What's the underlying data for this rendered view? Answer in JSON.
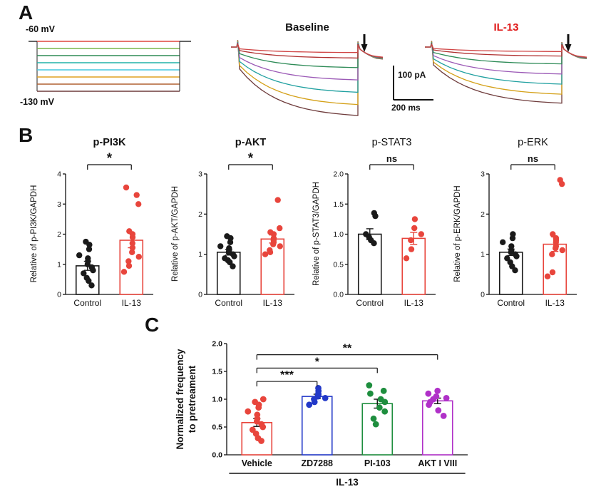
{
  "panel_a": {
    "label": "A",
    "protocol": {
      "top_label": "-60 mV",
      "bottom_label": "-130 mV",
      "step_colors": [
        "#e0453c",
        "#7ab648",
        "#2e8b57",
        "#20b2aa",
        "#45c8e0",
        "#e0a020",
        "#b06030",
        "#6e3b3b"
      ]
    },
    "baseline_title": "Baseline",
    "il13_title": "IL-13",
    "il13_title_style": "color:#e01818",
    "scalebar": {
      "vertical_label": "100 pA",
      "horizontal_label": "200 ms"
    },
    "traces": {
      "colors": [
        "#d04545",
        "#b03030",
        "#2e8b57",
        "#9b59b6",
        "#20a0a0",
        "#d4a017",
        "#6e3b3b"
      ],
      "relative_amplitudes": [
        0.08,
        0.16,
        0.3,
        0.48,
        0.66,
        0.84,
        1.0
      ],
      "il13_relative_scale": 0.82
    }
  },
  "panel_b": {
    "label": "B"
  },
  "panel_c": {
    "label": "C"
  },
  "chart_data": [
    {
      "id": "p_pi3k",
      "type": "bar",
      "title": "p-PI3K",
      "ylabel": "Relative of p-PI3K/GAPDH",
      "ylim": [
        0,
        4
      ],
      "yticks": [
        0,
        1,
        2,
        3,
        4
      ],
      "categories": [
        "Control",
        "IL-13"
      ],
      "significance": "*",
      "series": [
        {
          "name": "Control",
          "color": "#1a1a1a",
          "mean": 0.95,
          "sem": 0.15,
          "points": [
            0.3,
            0.45,
            0.55,
            0.7,
            0.8,
            0.9,
            1.0,
            1.1,
            1.2,
            1.3,
            1.5,
            1.65,
            1.75
          ]
        },
        {
          "name": "IL-13",
          "color": "#e8453c",
          "mean": 1.8,
          "sem": 0.25,
          "points": [
            0.75,
            0.95,
            1.1,
            1.25,
            1.4,
            1.55,
            1.7,
            1.9,
            2.0,
            2.1,
            3.0,
            3.3,
            3.55
          ]
        }
      ]
    },
    {
      "id": "p_akt",
      "type": "bar",
      "title": "p-AKT",
      "ylabel": "Relative of p-AKT/GAPDH",
      "ylim": [
        0,
        3
      ],
      "yticks": [
        0,
        1,
        2,
        3
      ],
      "categories": [
        "Control",
        "IL-13"
      ],
      "significance": "*",
      "series": [
        {
          "name": "Control",
          "color": "#1a1a1a",
          "mean": 1.05,
          "sem": 0.07,
          "points": [
            0.7,
            0.8,
            0.85,
            0.9,
            0.95,
            1.0,
            1.05,
            1.1,
            1.15,
            1.2,
            1.3,
            1.4,
            1.45
          ]
        },
        {
          "name": "IL-13",
          "color": "#e8453c",
          "mean": 1.38,
          "sem": 0.1,
          "points": [
            1.0,
            1.05,
            1.1,
            1.2,
            1.25,
            1.3,
            1.35,
            1.4,
            1.5,
            1.55,
            1.65,
            2.35
          ]
        }
      ]
    },
    {
      "id": "p_stat3",
      "type": "bar",
      "title": "p-STAT3",
      "ylabel": "Relative of p-STAT3/GAPDH",
      "ylim": [
        0,
        2
      ],
      "yticks": [
        0,
        0.5,
        1,
        1.5,
        2
      ],
      "categories": [
        "Control",
        "IL-13"
      ],
      "significance": "ns",
      "series": [
        {
          "name": "Control",
          "color": "#1a1a1a",
          "mean": 1.0,
          "sem": 0.09,
          "points": [
            0.85,
            0.9,
            0.95,
            1.0,
            1.3,
            1.35
          ]
        },
        {
          "name": "IL-13",
          "color": "#e8453c",
          "mean": 0.93,
          "sem": 0.1,
          "points": [
            0.6,
            0.75,
            0.9,
            1.0,
            1.1,
            1.25
          ]
        }
      ]
    },
    {
      "id": "p_erk",
      "type": "bar",
      "title": "p-ERK",
      "ylabel": "Relative of p-ERK/GAPDH",
      "ylim": [
        0,
        3
      ],
      "yticks": [
        0,
        1,
        2,
        3
      ],
      "categories": [
        "Control",
        "IL-13"
      ],
      "significance": "ns",
      "series": [
        {
          "name": "Control",
          "color": "#1a1a1a",
          "mean": 1.05,
          "sem": 0.08,
          "points": [
            0.6,
            0.7,
            0.8,
            0.9,
            0.95,
            1.0,
            1.05,
            1.1,
            1.2,
            1.3,
            1.4,
            1.5
          ]
        },
        {
          "name": "IL-13",
          "color": "#e8453c",
          "mean": 1.25,
          "sem": 0.18,
          "points": [
            0.45,
            0.55,
            1.0,
            1.1,
            1.15,
            1.2,
            1.3,
            1.35,
            1.4,
            1.5,
            2.75,
            2.85
          ]
        }
      ]
    },
    {
      "id": "normalized_frequency",
      "type": "bar",
      "title": "",
      "ylabel": "Normalized frequency\nto pretreament",
      "ylim": [
        0,
        2
      ],
      "yticks": [
        0,
        0.5,
        1,
        1.5,
        2
      ],
      "categories": [
        "Vehicle",
        "ZD7288",
        "PI-103",
        "AKT I VIII"
      ],
      "group_label": "IL-13",
      "comparisons": [
        {
          "from": 0,
          "to": 1,
          "label": "***",
          "height": 1.32
        },
        {
          "from": 0,
          "to": 2,
          "label": "*",
          "height": 1.56
        },
        {
          "from": 0,
          "to": 3,
          "label": "**",
          "height": 1.8
        }
      ],
      "series": [
        {
          "name": "Vehicle",
          "color": "#e8453c",
          "mean": 0.58,
          "sem": 0.07,
          "points": [
            0.25,
            0.3,
            0.38,
            0.45,
            0.5,
            0.55,
            0.6,
            0.65,
            0.72,
            0.78,
            0.85,
            0.9,
            0.95,
            1.0
          ]
        },
        {
          "name": "ZD7288",
          "color": "#2238c8",
          "mean": 1.05,
          "sem": 0.04,
          "points": [
            0.9,
            0.95,
            1.0,
            1.02,
            1.05,
            1.08,
            1.1,
            1.15,
            1.2
          ]
        },
        {
          "name": "PI-103",
          "color": "#1e8e3e",
          "mean": 0.92,
          "sem": 0.08,
          "points": [
            0.55,
            0.65,
            0.78,
            0.85,
            0.95,
            1.0,
            1.1,
            1.15,
            1.25
          ]
        },
        {
          "name": "AKT I VIII",
          "color": "#b030c8",
          "mean": 0.97,
          "sem": 0.05,
          "points": [
            0.7,
            0.8,
            0.9,
            0.95,
            1.0,
            1.02,
            1.05,
            1.1,
            1.15
          ]
        }
      ]
    }
  ]
}
